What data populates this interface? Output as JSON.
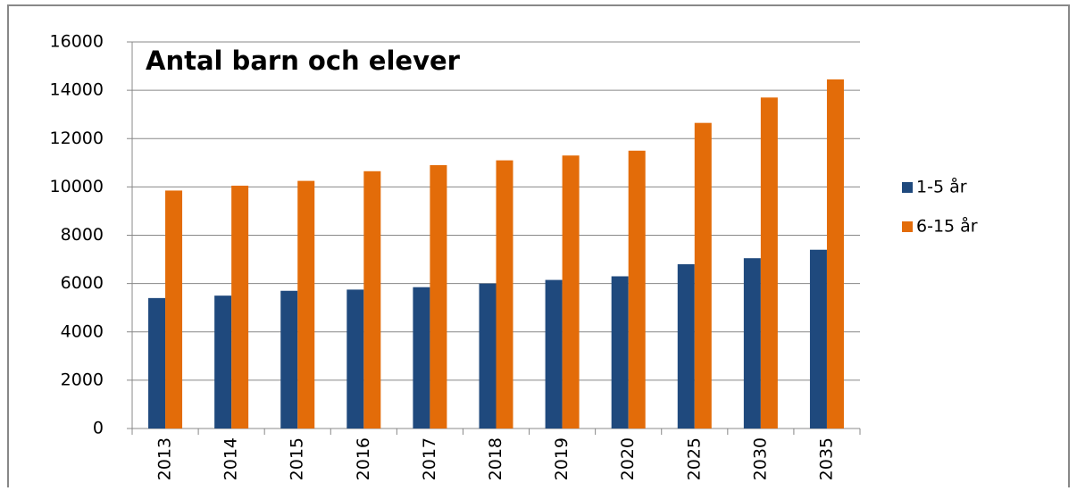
{
  "chart_data": {
    "type": "bar",
    "title": "Antal barn och elever",
    "categories": [
      "2013",
      "2014",
      "2015",
      "2016",
      "2017",
      "2018",
      "2019",
      "2020",
      "2025",
      "2030",
      "2035"
    ],
    "series": [
      {
        "name": "1-5 år",
        "color": "#1f497d",
        "values": [
          5400,
          5500,
          5700,
          5750,
          5850,
          6000,
          6150,
          6300,
          6800,
          7050,
          7400
        ]
      },
      {
        "name": "6-15 år",
        "color": "#e36c09",
        "values": [
          9850,
          10050,
          10250,
          10650,
          10900,
          11100,
          11300,
          11500,
          12650,
          13700,
          14450
        ]
      }
    ],
    "ylim": [
      0,
      16000
    ],
    "yticks": [
      0,
      2000,
      4000,
      6000,
      8000,
      10000,
      12000,
      14000,
      16000
    ],
    "grid": true,
    "legend": "right"
  }
}
